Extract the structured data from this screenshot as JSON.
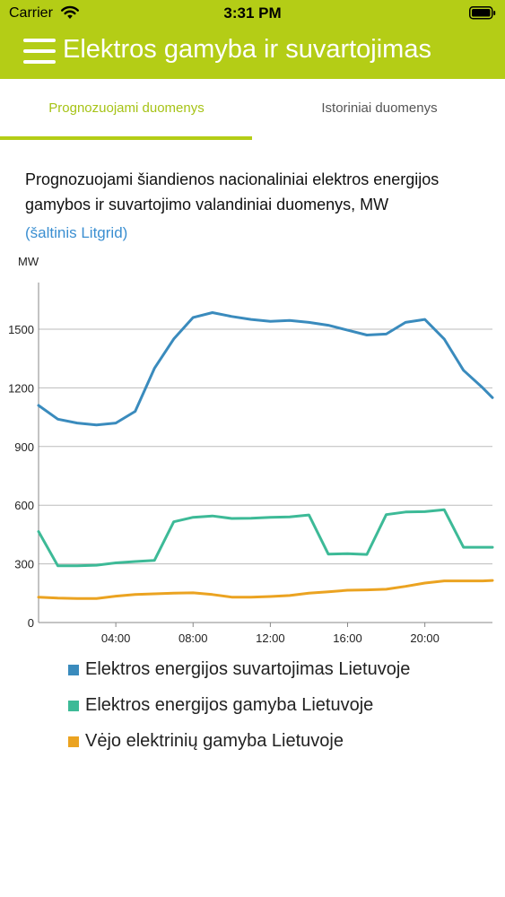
{
  "status_bar": {
    "carrier": "Carrier",
    "time": "3:31 PM"
  },
  "header": {
    "title": "Elektros gamyba ir suvartojimas"
  },
  "tabs": [
    {
      "label": "Prognozuojami duomenys",
      "active": true
    },
    {
      "label": "Istoriniai duomenys",
      "active": false
    }
  ],
  "description": "Prognozuojami šiandienos nacionaliniai elektros energijos gamybos ir suvartojimo valandiniai duomenys, MW",
  "source_link": "(šaltinis Litgrid)",
  "colors": {
    "accent": "#b4cd16",
    "link": "#3b8fd1"
  },
  "chart_data": {
    "type": "line",
    "ylabel": "MW",
    "ylim": [
      0,
      1800
    ],
    "xlim": [
      0,
      23.5
    ],
    "yticks": [
      "0",
      "300",
      "600",
      "900",
      "1200",
      "1500"
    ],
    "ytick_values": [
      0,
      300,
      600,
      900,
      1200,
      1500
    ],
    "xticks": [
      "04:00",
      "08:00",
      "12:00",
      "16:00",
      "20:00"
    ],
    "xtick_values": [
      4,
      8,
      12,
      16,
      20
    ],
    "grid": "horizontal",
    "x": [
      0,
      1,
      2,
      3,
      4,
      5,
      6,
      7,
      8,
      9,
      10,
      11,
      12,
      13,
      14,
      15,
      16,
      17,
      18,
      19,
      20,
      21,
      22,
      23,
      23.5
    ],
    "series": [
      {
        "name": "Elektros energijos suvartojimas Lietuvoje",
        "color": "#3a8bbd",
        "values": [
          1110,
          1040,
          1020,
          1010,
          1020,
          1080,
          1300,
          1450,
          1560,
          1585,
          1565,
          1550,
          1540,
          1545,
          1535,
          1520,
          1495,
          1470,
          1475,
          1535,
          1550,
          1450,
          1290,
          1200,
          1150
        ]
      },
      {
        "name": "Elektros energijos gamyba Lietuvoje",
        "color": "#3dba97",
        "values": [
          465,
          290,
          290,
          293,
          305,
          312,
          318,
          515,
          538,
          545,
          532,
          533,
          538,
          540,
          550,
          350,
          352,
          348,
          552,
          565,
          567,
          577,
          385,
          385,
          385
        ]
      },
      {
        "name": "Vėjo elektrinių gamyba Lietuvoje",
        "color": "#eba321",
        "values": [
          130,
          125,
          123,
          123,
          135,
          143,
          147,
          150,
          152,
          143,
          130,
          130,
          133,
          138,
          150,
          157,
          165,
          167,
          170,
          185,
          202,
          213,
          213,
          213,
          215
        ]
      }
    ]
  }
}
